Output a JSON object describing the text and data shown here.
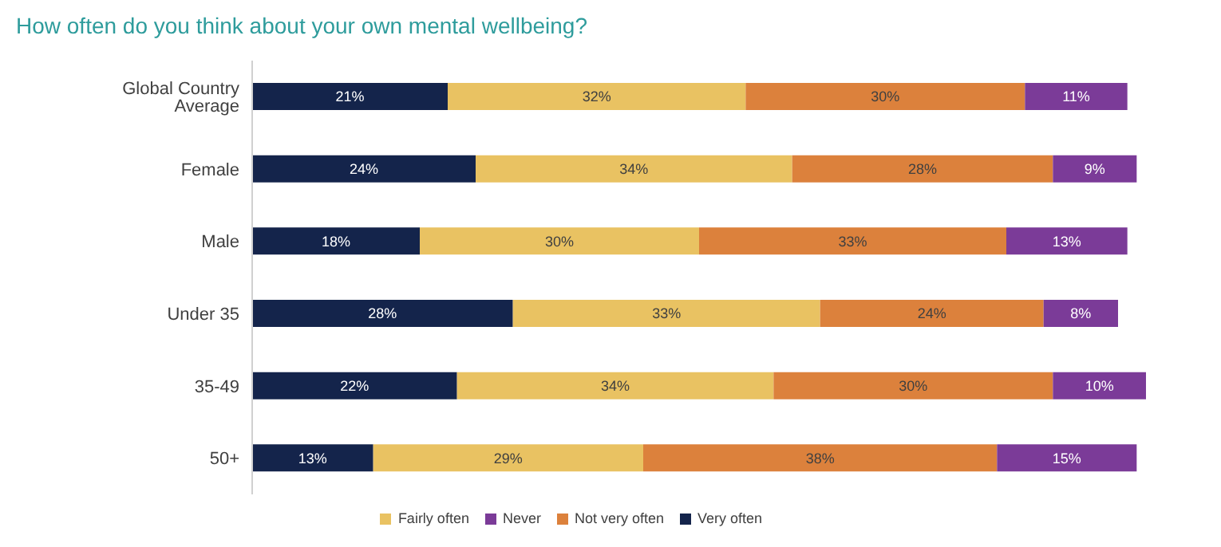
{
  "chart_data": {
    "type": "bar",
    "orientation": "horizontal",
    "stacked": true,
    "title": "How often do you think about your own mental wellbeing?",
    "categories": [
      "Global Country Average",
      "Female",
      "Male",
      "Under 35",
      "35-49",
      "50+"
    ],
    "series": [
      {
        "name": "Very often",
        "color": "#14244b",
        "values": [
          21,
          24,
          18,
          28,
          22,
          13
        ],
        "value_labels": [
          "21%",
          "24%",
          "18%",
          "28%",
          "22%",
          "13%"
        ]
      },
      {
        "name": "Fairly often",
        "color": "#e9c262",
        "values": [
          32,
          34,
          30,
          33,
          34,
          29
        ],
        "value_labels": [
          "32%",
          "34%",
          "30%",
          "33%",
          "34%",
          "29%"
        ]
      },
      {
        "name": "Not very often",
        "color": "#dc813c",
        "values": [
          30,
          28,
          33,
          24,
          30,
          38
        ],
        "value_labels": [
          "30%",
          "28%",
          "33%",
          "24%",
          "30%",
          "38%"
        ]
      },
      {
        "name": "Never",
        "color": "#7b3b98",
        "values": [
          11,
          9,
          13,
          8,
          10,
          15
        ],
        "value_labels": [
          "11%",
          "9%",
          "13%",
          "8%",
          "10%",
          "15%"
        ]
      }
    ],
    "legend": "bottom"
  }
}
